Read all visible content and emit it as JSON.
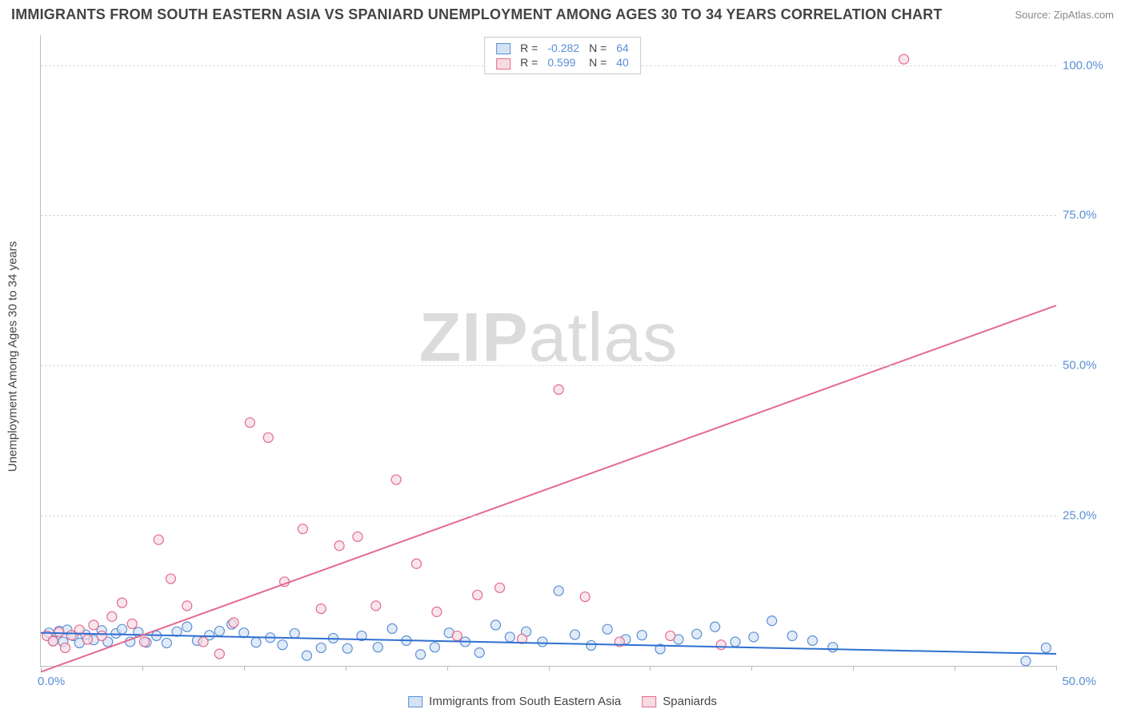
{
  "title": "IMMIGRANTS FROM SOUTH EASTERN ASIA VS SPANIARD UNEMPLOYMENT AMONG AGES 30 TO 34 YEARS CORRELATION CHART",
  "source": "Source: ZipAtlas.com",
  "watermark_bold": "ZIP",
  "watermark_light": "atlas",
  "ylabel": "Unemployment Among Ages 30 to 34 years",
  "chart": {
    "type": "scatter",
    "xlim": [
      0,
      50
    ],
    "ylim": [
      0,
      105
    ],
    "xticks": [
      0,
      5,
      10,
      15,
      20,
      25,
      30,
      35,
      40,
      45,
      50
    ],
    "yticks": [
      25,
      50,
      75,
      100
    ],
    "ytick_labels": [
      "25.0%",
      "50.0%",
      "75.0%",
      "100.0%"
    ],
    "x_origin_label": "0.0%",
    "x_end_label": "50.0%",
    "background_color": "#ffffff",
    "grid_color": "#d8d8d8",
    "axis_color": "#bcbcbc",
    "tick_label_color": "#5a8fd6",
    "series": [
      {
        "name": "Immigrants from South Eastern Asia",
        "marker_fill": "#d4e2f4",
        "marker_stroke": "#5a8fd6",
        "marker_opacity": 0.7,
        "marker_radius": 6,
        "line_color": "#2f6fd0",
        "line_width": 2,
        "R": "-0.282",
        "N": "64",
        "trend": {
          "x1": 0,
          "y1": 5.5,
          "x2": 50,
          "y2": 2.0
        },
        "points": [
          [
            0.4,
            5.5
          ],
          [
            0.6,
            4.2
          ],
          [
            0.9,
            5.8
          ],
          [
            1.1,
            4.0
          ],
          [
            1.3,
            6.0
          ],
          [
            1.6,
            5.0
          ],
          [
            1.9,
            3.8
          ],
          [
            2.2,
            5.2
          ],
          [
            2.6,
            4.3
          ],
          [
            3.0,
            5.9
          ],
          [
            3.3,
            4.0
          ],
          [
            3.7,
            5.4
          ],
          [
            4.0,
            6.1
          ],
          [
            4.4,
            4.0
          ],
          [
            4.8,
            5.6
          ],
          [
            5.2,
            3.9
          ],
          [
            5.7,
            5.0
          ],
          [
            6.2,
            3.8
          ],
          [
            6.7,
            5.7
          ],
          [
            7.2,
            6.5
          ],
          [
            7.7,
            4.2
          ],
          [
            8.3,
            5.1
          ],
          [
            8.8,
            5.8
          ],
          [
            9.4,
            6.9
          ],
          [
            10.0,
            5.5
          ],
          [
            10.6,
            3.9
          ],
          [
            11.3,
            4.7
          ],
          [
            11.9,
            3.5
          ],
          [
            12.5,
            5.4
          ],
          [
            13.1,
            1.7
          ],
          [
            13.8,
            3.0
          ],
          [
            14.4,
            4.6
          ],
          [
            15.1,
            2.9
          ],
          [
            15.8,
            5.0
          ],
          [
            16.6,
            3.1
          ],
          [
            17.3,
            6.2
          ],
          [
            18.0,
            4.2
          ],
          [
            18.7,
            1.9
          ],
          [
            19.4,
            3.1
          ],
          [
            20.1,
            5.5
          ],
          [
            20.9,
            4.0
          ],
          [
            21.6,
            2.2
          ],
          [
            22.4,
            6.8
          ],
          [
            23.1,
            4.8
          ],
          [
            23.9,
            5.7
          ],
          [
            24.7,
            4.0
          ],
          [
            25.5,
            12.5
          ],
          [
            26.3,
            5.2
          ],
          [
            27.1,
            3.4
          ],
          [
            27.9,
            6.1
          ],
          [
            28.8,
            4.4
          ],
          [
            29.6,
            5.1
          ],
          [
            30.5,
            2.8
          ],
          [
            31.4,
            4.4
          ],
          [
            32.3,
            5.3
          ],
          [
            33.2,
            6.5
          ],
          [
            34.2,
            4.0
          ],
          [
            35.1,
            4.8
          ],
          [
            36.0,
            7.5
          ],
          [
            37.0,
            5.0
          ],
          [
            38.0,
            4.2
          ],
          [
            39.0,
            3.1
          ],
          [
            48.5,
            0.8
          ],
          [
            49.5,
            3.0
          ]
        ]
      },
      {
        "name": "Spaniards",
        "marker_fill": "#f6dbe2",
        "marker_stroke": "#e46a8e",
        "marker_opacity": 0.7,
        "marker_radius": 6,
        "line_color": "#e46a8e",
        "line_width": 2,
        "R": "0.599",
        "N": "40",
        "trend": {
          "x1": 0,
          "y1": -1.0,
          "x2": 50,
          "y2": 60.0
        },
        "points": [
          [
            0.3,
            5.0
          ],
          [
            0.6,
            4.1
          ],
          [
            0.9,
            5.6
          ],
          [
            1.2,
            3.0
          ],
          [
            1.5,
            5.1
          ],
          [
            1.9,
            6.0
          ],
          [
            2.3,
            4.4
          ],
          [
            2.6,
            6.8
          ],
          [
            3.0,
            5.0
          ],
          [
            3.5,
            8.2
          ],
          [
            4.0,
            10.5
          ],
          [
            4.5,
            7.0
          ],
          [
            5.1,
            4.0
          ],
          [
            5.8,
            21.0
          ],
          [
            6.4,
            14.5
          ],
          [
            7.2,
            10.0
          ],
          [
            8.0,
            4.0
          ],
          [
            8.8,
            2.0
          ],
          [
            9.5,
            7.2
          ],
          [
            10.3,
            40.5
          ],
          [
            11.2,
            38.0
          ],
          [
            12.0,
            14.0
          ],
          [
            12.9,
            22.8
          ],
          [
            13.8,
            9.5
          ],
          [
            14.7,
            20.0
          ],
          [
            15.6,
            21.5
          ],
          [
            16.5,
            10.0
          ],
          [
            17.5,
            31.0
          ],
          [
            18.5,
            17.0
          ],
          [
            19.5,
            9.0
          ],
          [
            20.5,
            5.0
          ],
          [
            21.5,
            11.8
          ],
          [
            22.6,
            13.0
          ],
          [
            23.7,
            4.5
          ],
          [
            25.5,
            46.0
          ],
          [
            26.8,
            11.5
          ],
          [
            28.5,
            4.0
          ],
          [
            31.0,
            5.0
          ],
          [
            33.5,
            3.5
          ],
          [
            42.5,
            101.0
          ]
        ]
      }
    ]
  },
  "legend_top": {
    "R_label": "R =",
    "N_label": "N ="
  },
  "legend_bottom": [
    "Immigrants from South Eastern Asia",
    "Spaniards"
  ]
}
